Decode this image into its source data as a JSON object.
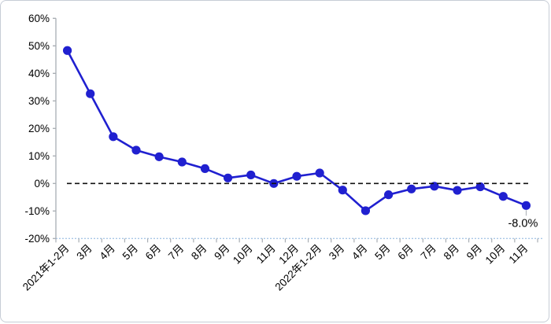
{
  "chart": {
    "background": "#ffffff",
    "border_color": "#c7cdd6",
    "axis_color": "#a8adb3",
    "x_axis_dot_color": "#a9c7e6",
    "text_color": "#000000"
  },
  "chart_data": {
    "type": "line",
    "title": "",
    "categories": [
      "2021年1-2月",
      "3月",
      "4月",
      "5月",
      "6月",
      "7月",
      "8月",
      "9月",
      "10月",
      "11月",
      "12月",
      "2022年1-2月",
      "3月",
      "4月",
      "5月",
      "6月",
      "7月",
      "8月",
      "9月",
      "10月",
      "11月"
    ],
    "values": [
      48.3,
      32.6,
      17.0,
      12.1,
      9.7,
      7.8,
      5.4,
      2.0,
      3.1,
      0.0,
      2.6,
      3.8,
      -2.4,
      -9.9,
      -4.1,
      -2.0,
      -1.0,
      -2.5,
      -1.2,
      -4.7,
      -8.0
    ],
    "xlabel": "",
    "ylabel": "",
    "ylim": [
      -20,
      60
    ],
    "y_tick_step": 10,
    "y_tick_values": [
      60,
      50,
      40,
      30,
      20,
      10,
      0,
      -10,
      -20
    ],
    "y_tick_labels": [
      "60%",
      "50%",
      "40%",
      "30%",
      "20%",
      "10%",
      "0%",
      "-10%",
      "-20%"
    ],
    "grid": "off",
    "legend": "none",
    "line_color": "#2020d0",
    "marker_color": "#2020d0",
    "marker_style": "circle",
    "zero_line": {
      "style": "dashed",
      "color": "#111111"
    },
    "annotation": {
      "text": "-8.0%",
      "point_index": 20
    }
  }
}
